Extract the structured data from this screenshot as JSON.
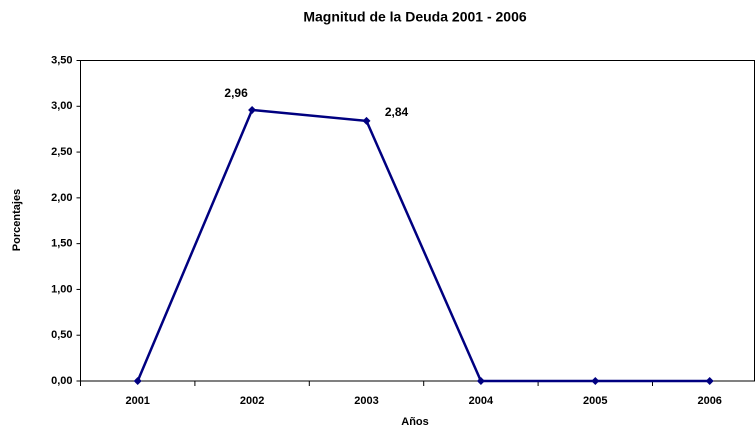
{
  "chart_data": {
    "type": "line",
    "title": "Magnitud de la Deuda 2001 - 2006",
    "x_label": "Años",
    "y_label": "Porcentajes",
    "categories": [
      "2001",
      "2002",
      "2003",
      "2004",
      "2005",
      "2006"
    ],
    "series": [
      {
        "name": "Magnitud de la Deuda",
        "color": "#000080",
        "values": [
          0,
          2.96,
          2.84,
          0,
          0,
          0
        ],
        "value_labels": [
          null,
          "2,96",
          "2,84",
          null,
          null,
          null
        ]
      }
    ],
    "ylim": [
      0,
      3.5
    ],
    "yticks": [
      {
        "value": 0,
        "label": "0,00"
      },
      {
        "value": 0.5,
        "label": "0,50"
      },
      {
        "value": 1,
        "label": "1,00"
      },
      {
        "value": 1.5,
        "label": "1,50"
      },
      {
        "value": 2,
        "label": "2,00"
      },
      {
        "value": 2.5,
        "label": "2,50"
      },
      {
        "value": 3,
        "label": "3,00"
      },
      {
        "value": 3.5,
        "label": "3,50"
      }
    ],
    "grid": false,
    "legend": false
  }
}
